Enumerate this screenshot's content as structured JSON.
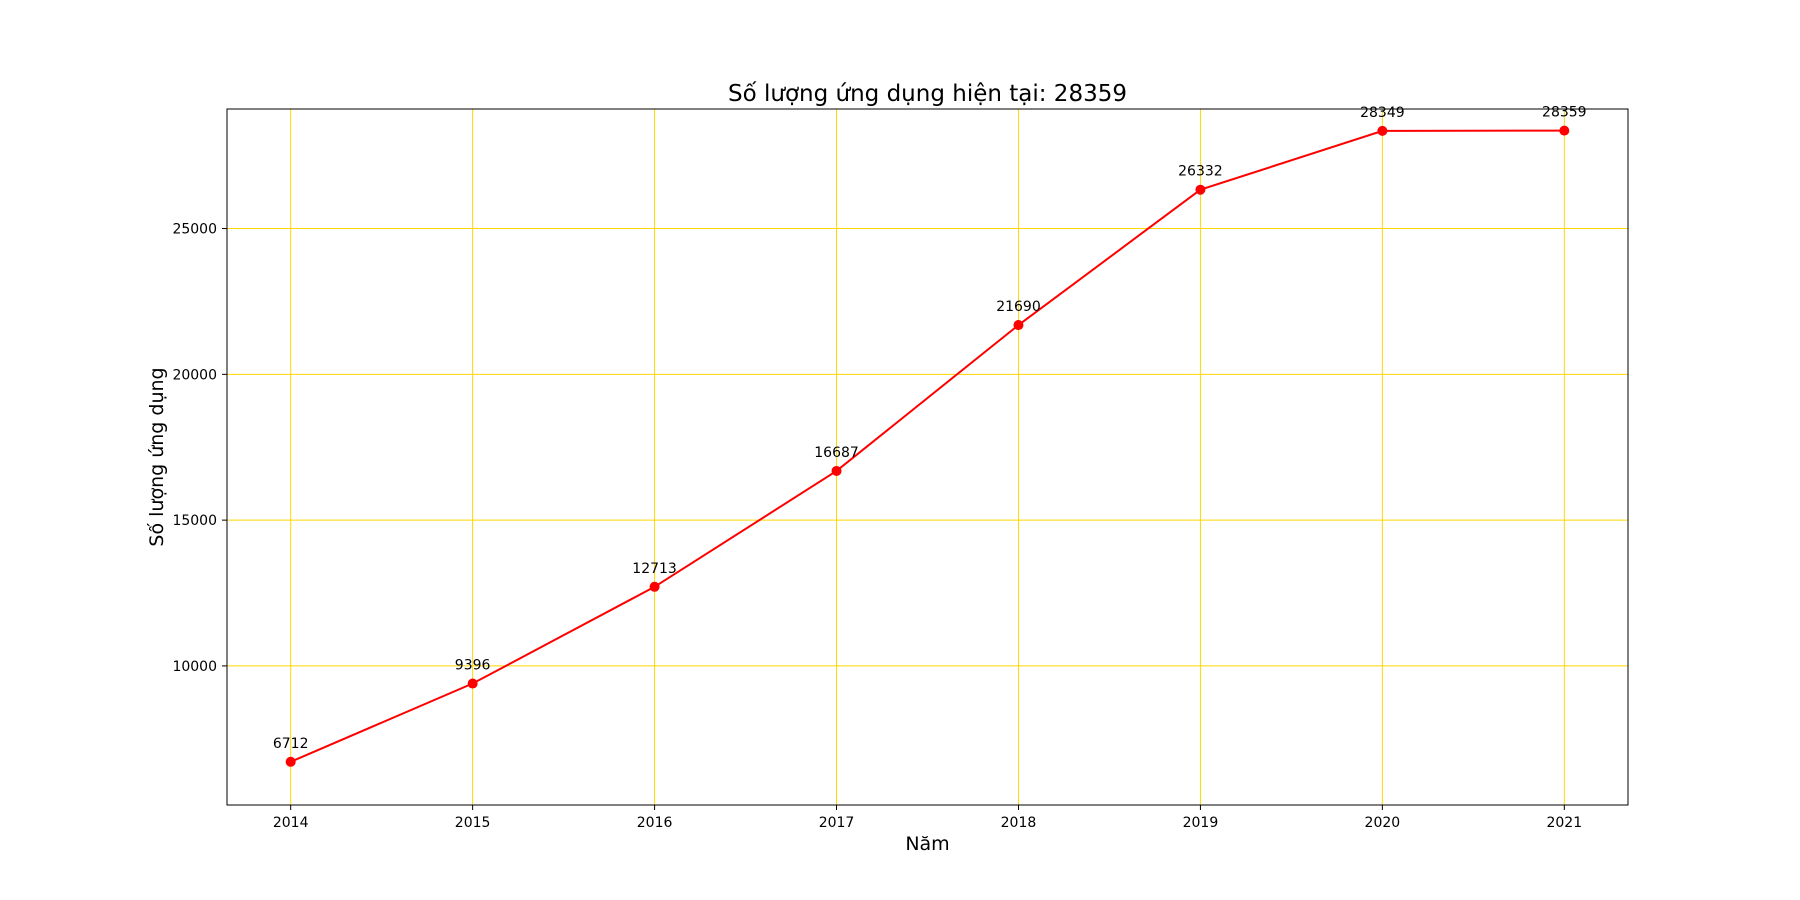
{
  "chart_data": {
    "type": "line",
    "title": "Số lượng ứng dụng hiện tại: 28359",
    "xlabel": "Năm",
    "ylabel": "Số lượng ứng dụng",
    "x": [
      2014,
      2015,
      2016,
      2017,
      2018,
      2019,
      2020,
      2021
    ],
    "x_tick_labels": [
      "2014",
      "2015",
      "2016",
      "2017",
      "2018",
      "2019",
      "2020",
      "2021"
    ],
    "series": [
      {
        "values": [
          6712,
          9396,
          12713,
          16687,
          21690,
          26332,
          28349,
          28359
        ]
      }
    ],
    "data_labels": [
      "6712",
      "9396",
      "12713",
      "16687",
      "21690",
      "26332",
      "28349",
      "28359"
    ],
    "y_ticks": [
      10000,
      15000,
      20000,
      25000
    ],
    "y_tick_labels": [
      "10000",
      "15000",
      "20000",
      "25000"
    ],
    "xlim": [
      2013.65,
      2021.35
    ],
    "ylim": [
      5230,
      29100
    ],
    "grid": true,
    "colors": {
      "line": "#ff0000",
      "marker": "#ff0000",
      "grid": "#ffd700",
      "axes": "#000000"
    }
  }
}
